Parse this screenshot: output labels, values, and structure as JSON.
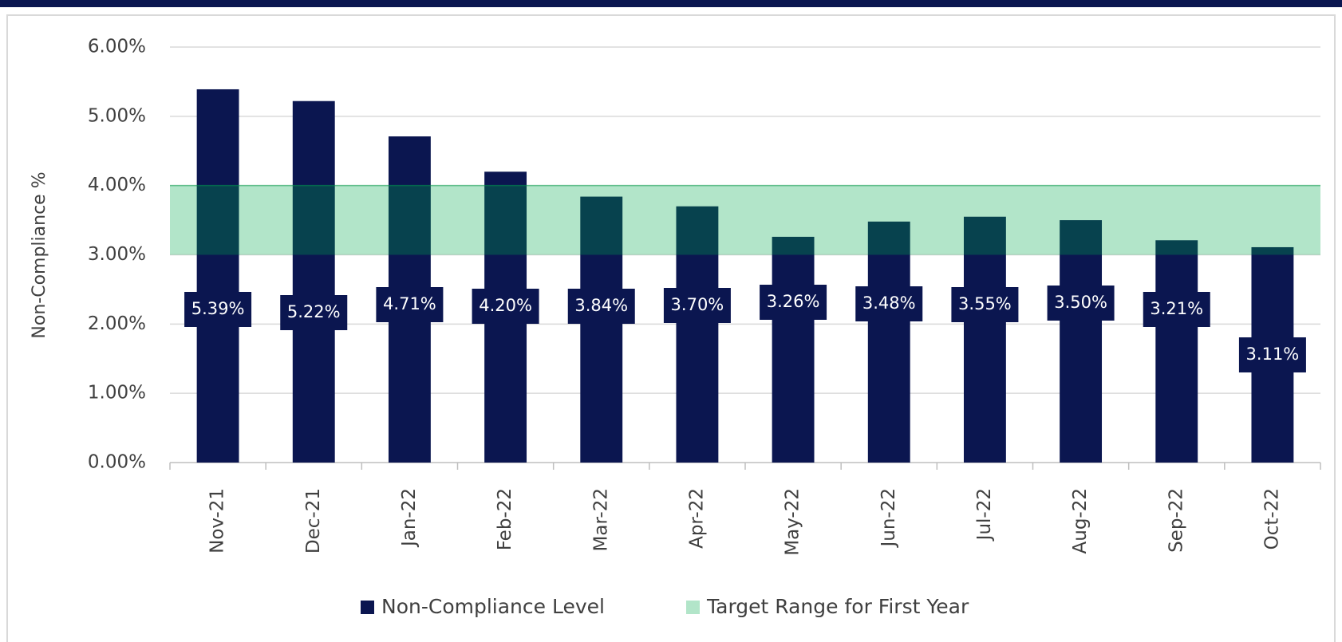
{
  "chart_data": {
    "type": "bar",
    "y_axis_label": "Non-Compliance %",
    "categories": [
      "Nov-21",
      "Dec-21",
      "Jan-22",
      "Feb-22",
      "Mar-22",
      "Apr-22",
      "May-22",
      "Jun-22",
      "Jul-22",
      "Aug-22",
      "Sep-22",
      "Oct-22"
    ],
    "series": [
      {
        "name": "Non-Compliance Level",
        "color": "#0b1650",
        "values": [
          5.39,
          5.22,
          4.71,
          4.2,
          3.84,
          3.7,
          3.26,
          3.48,
          3.55,
          3.5,
          3.21,
          3.11
        ],
        "value_labels": [
          "5.39%",
          "5.22%",
          "4.71%",
          "4.20%",
          "3.84%",
          "3.70%",
          "3.26%",
          "3.48%",
          "3.55%",
          "3.50%",
          "3.21%",
          "3.11%"
        ]
      }
    ],
    "target_range": {
      "name": "Target Range for First Year",
      "color": "#00aa4b",
      "values": [
        3,
        4
      ]
    },
    "ylim": [
      0,
      6
    ],
    "yticks": [
      {
        "value": 0,
        "label": "0.00%"
      },
      {
        "value": 1,
        "label": "1.00%"
      },
      {
        "value": 2,
        "label": "2.00%"
      },
      {
        "value": 3,
        "label": "3.00%"
      },
      {
        "value": 4,
        "label": "4.00%"
      },
      {
        "value": 5,
        "label": "5.00%"
      },
      {
        "value": 6,
        "label": "6.00%"
      }
    ],
    "grid": true
  }
}
